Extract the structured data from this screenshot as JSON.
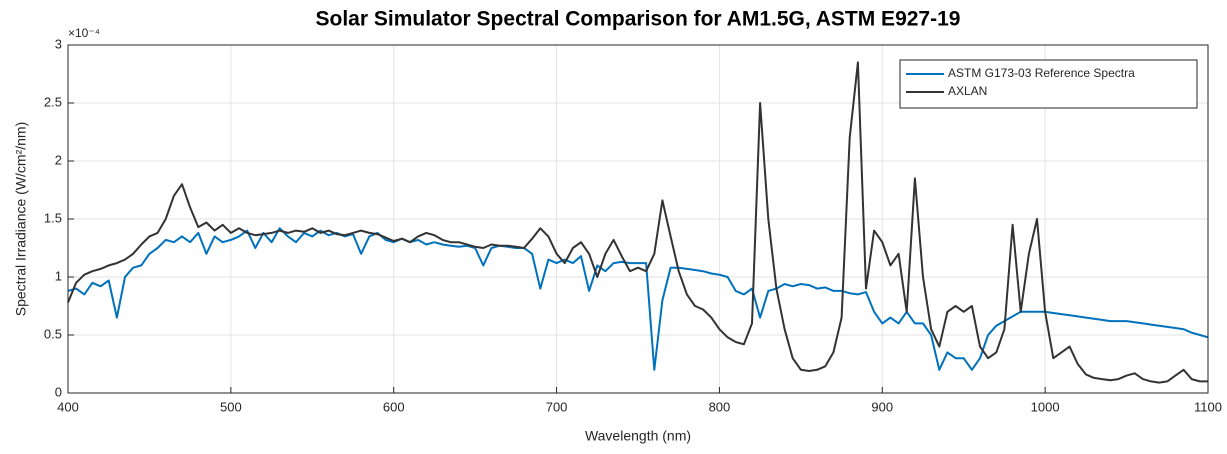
{
  "chart_data": {
    "type": "line",
    "title": "Solar Simulator Spectral Comparison for AM1.5G, ASTM E927-19",
    "x_label": "Wavelength (nm)",
    "y_label": "Spectral Irradiance (W/cm²/nm)",
    "y_exponent": "×10⁻⁴",
    "x": [
      400,
      405,
      410,
      415,
      420,
      425,
      430,
      435,
      440,
      445,
      450,
      455,
      460,
      465,
      470,
      475,
      480,
      485,
      490,
      495,
      500,
      505,
      510,
      515,
      520,
      525,
      530,
      535,
      540,
      545,
      550,
      555,
      560,
      565,
      570,
      575,
      580,
      585,
      590,
      595,
      600,
      605,
      610,
      615,
      620,
      625,
      630,
      635,
      640,
      645,
      650,
      655,
      660,
      665,
      670,
      675,
      680,
      685,
      690,
      695,
      700,
      705,
      710,
      715,
      720,
      725,
      730,
      735,
      740,
      745,
      750,
      755,
      760,
      765,
      770,
      775,
      780,
      785,
      790,
      795,
      800,
      805,
      810,
      815,
      820,
      825,
      830,
      835,
      840,
      845,
      850,
      855,
      860,
      865,
      870,
      875,
      880,
      885,
      890,
      895,
      900,
      905,
      910,
      915,
      920,
      925,
      930,
      935,
      940,
      945,
      950,
      955,
      960,
      965,
      970,
      975,
      980,
      985,
      990,
      995,
      1000,
      1005,
      1010,
      1015,
      1020,
      1025,
      1030,
      1035,
      1040,
      1045,
      1050,
      1055,
      1060,
      1065,
      1070,
      1075,
      1080,
      1085,
      1090,
      1095,
      1100
    ],
    "series": [
      {
        "name": "ASTM G173-03 Reference Spectra",
        "color": "#0072bd",
        "values": [
          0.88,
          0.9,
          0.85,
          0.95,
          0.92,
          0.97,
          0.65,
          1.0,
          1.08,
          1.1,
          1.2,
          1.25,
          1.32,
          1.3,
          1.35,
          1.3,
          1.38,
          1.2,
          1.35,
          1.3,
          1.32,
          1.35,
          1.4,
          1.25,
          1.38,
          1.3,
          1.42,
          1.35,
          1.3,
          1.38,
          1.35,
          1.4,
          1.36,
          1.38,
          1.35,
          1.37,
          1.2,
          1.35,
          1.38,
          1.32,
          1.3,
          1.33,
          1.3,
          1.32,
          1.28,
          1.3,
          1.28,
          1.27,
          1.26,
          1.27,
          1.25,
          1.1,
          1.25,
          1.27,
          1.26,
          1.25,
          1.25,
          1.2,
          0.9,
          1.15,
          1.12,
          1.15,
          1.12,
          1.18,
          0.88,
          1.1,
          1.05,
          1.12,
          1.13,
          1.12,
          1.12,
          1.12,
          0.2,
          0.8,
          1.08,
          1.08,
          1.07,
          1.06,
          1.05,
          1.03,
          1.02,
          1.0,
          0.88,
          0.85,
          0.9,
          0.65,
          0.88,
          0.9,
          0.94,
          0.92,
          0.94,
          0.93,
          0.9,
          0.91,
          0.88,
          0.88,
          0.86,
          0.85,
          0.87,
          0.7,
          0.6,
          0.65,
          0.6,
          0.7,
          0.6,
          0.6,
          0.5,
          0.2,
          0.35,
          0.3,
          0.3,
          0.2,
          0.3,
          0.5,
          0.58,
          0.62,
          0.66,
          0.7,
          0.7,
          0.7,
          0.7,
          0.69,
          0.68,
          0.67,
          0.66,
          0.65,
          0.64,
          0.63,
          0.62,
          0.62,
          0.62,
          0.61,
          0.6,
          0.59,
          0.58,
          0.57,
          0.56,
          0.55,
          0.52,
          0.5,
          0.48
        ]
      },
      {
        "name": "AXLAN",
        "color": "#333333",
        "values": [
          0.78,
          0.95,
          1.02,
          1.05,
          1.07,
          1.1,
          1.12,
          1.15,
          1.2,
          1.28,
          1.35,
          1.38,
          1.5,
          1.7,
          1.8,
          1.6,
          1.43,
          1.47,
          1.4,
          1.45,
          1.38,
          1.42,
          1.38,
          1.36,
          1.37,
          1.38,
          1.4,
          1.38,
          1.4,
          1.39,
          1.42,
          1.38,
          1.4,
          1.37,
          1.36,
          1.38,
          1.4,
          1.38,
          1.37,
          1.34,
          1.31,
          1.33,
          1.3,
          1.35,
          1.38,
          1.36,
          1.32,
          1.3,
          1.3,
          1.28,
          1.26,
          1.25,
          1.28,
          1.27,
          1.27,
          1.26,
          1.25,
          1.33,
          1.42,
          1.35,
          1.2,
          1.12,
          1.25,
          1.3,
          1.2,
          1.0,
          1.2,
          1.32,
          1.18,
          1.05,
          1.08,
          1.05,
          1.2,
          1.66,
          1.35,
          1.05,
          0.85,
          0.75,
          0.72,
          0.65,
          0.55,
          0.48,
          0.44,
          0.42,
          0.6,
          2.5,
          1.5,
          0.9,
          0.55,
          0.3,
          0.2,
          0.19,
          0.2,
          0.23,
          0.35,
          0.65,
          2.2,
          2.85,
          0.9,
          1.4,
          1.3,
          1.1,
          1.2,
          0.7,
          1.85,
          1.0,
          0.55,
          0.4,
          0.7,
          0.75,
          0.7,
          0.75,
          0.4,
          0.3,
          0.35,
          0.55,
          1.45,
          0.7,
          1.2,
          1.5,
          0.7,
          0.3,
          0.35,
          0.4,
          0.25,
          0.16,
          0.13,
          0.12,
          0.11,
          0.12,
          0.15,
          0.17,
          0.12,
          0.1,
          0.09,
          0.1,
          0.15,
          0.2,
          0.12,
          0.1,
          0.1
        ]
      }
    ],
    "xlim": [
      400,
      1100
    ],
    "xticks": [
      400,
      500,
      600,
      700,
      800,
      900,
      1000,
      1100
    ],
    "ylim": [
      0,
      3
    ],
    "yticks": [
      0,
      0.5,
      1,
      1.5,
      2,
      2.5,
      3
    ],
    "grid": true,
    "legend": "upper right"
  }
}
